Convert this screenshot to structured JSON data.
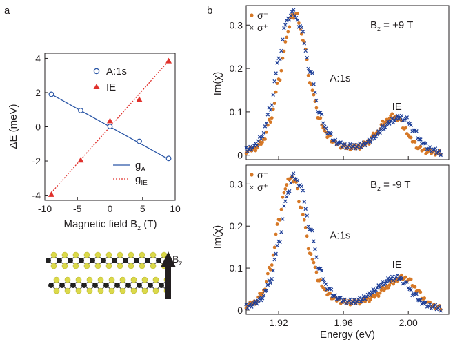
{
  "panel_labels": {
    "a": "a",
    "b": "b"
  },
  "chart_data": [
    {
      "type": "scatter",
      "panel": "a",
      "xlabel": "Magnetic field B",
      "xlabel_sub": "z",
      "xlabel_unit": " (T)",
      "ylabel": "ΔE (meV)",
      "xlim": [
        -10,
        10
      ],
      "ylim": [
        -4.3,
        4.3
      ],
      "xticks": [
        -10,
        -5,
        0,
        5,
        10
      ],
      "yticks": [
        -4,
        -2,
        0,
        2,
        4
      ],
      "series": [
        {
          "name": "A:1s",
          "marker": "open-circle",
          "color": "#2a56a6",
          "x": [
            -9,
            -4.5,
            0,
            4.5,
            9
          ],
          "y": [
            1.9,
            0.95,
            0.02,
            -0.85,
            -1.85
          ]
        },
        {
          "name": "IE",
          "marker": "filled-triangle",
          "color": "#e0312c",
          "x": [
            -9,
            -4.5,
            0,
            4.5,
            9
          ],
          "y": [
            -3.95,
            -1.95,
            0.35,
            1.6,
            3.85
          ]
        }
      ],
      "fits": [
        {
          "name": "g",
          "sub": "A",
          "style": "solid",
          "color": "#2a56a6",
          "x": [
            -9,
            9
          ],
          "y": [
            1.9,
            -1.9
          ]
        },
        {
          "name": "g",
          "sub": "IE",
          "style": "dotted",
          "color": "#e0312c",
          "x": [
            -9,
            9
          ],
          "y": [
            -3.85,
            3.85
          ]
        }
      ],
      "legend_position": "top-right",
      "inset_label": "B",
      "inset_label_sub": "z"
    },
    {
      "type": "scatter",
      "panel": "b-top",
      "ylabel": "Im(χ)",
      "xlim": [
        1.9,
        2.025
      ],
      "ylim": [
        -0.01,
        0.345
      ],
      "yticks": [
        0,
        0.1,
        0.2,
        0.3
      ],
      "ytick_labels": [
        "0",
        "0.1",
        "0.2",
        "0.3"
      ],
      "field_label": "B",
      "field_label_sub": "z",
      "field_label_value": "= +9 T",
      "annotations": [
        "A:1s",
        "IE"
      ],
      "series": [
        {
          "name": "σ⁻",
          "marker": "dot",
          "color": "#d67826",
          "x": [
            1.9,
            1.905,
            1.91,
            1.915,
            1.92,
            1.925,
            1.928,
            1.931,
            1.935,
            1.94,
            1.945,
            1.95,
            1.955,
            1.96,
            1.965,
            1.97,
            1.975,
            1.98,
            1.985,
            1.99,
            1.994,
            1.998,
            2.002,
            2.007,
            2.012,
            2.02
          ],
          "y": [
            0.01,
            0.015,
            0.03,
            0.08,
            0.17,
            0.27,
            0.32,
            0.325,
            0.27,
            0.16,
            0.085,
            0.045,
            0.028,
            0.02,
            0.018,
            0.02,
            0.03,
            0.05,
            0.075,
            0.09,
            0.085,
            0.06,
            0.035,
            0.015,
            0.008,
            0.005
          ]
        },
        {
          "name": "σ⁺",
          "marker": "x",
          "color": "#1e3f98",
          "x": [
            1.9,
            1.905,
            1.91,
            1.915,
            1.92,
            1.925,
            1.929,
            1.933,
            1.94,
            1.945,
            1.95,
            1.955,
            1.96,
            1.965,
            1.97,
            1.975,
            1.98,
            1.985,
            1.99,
            1.995,
            1.999,
            2.003,
            2.008,
            2.013,
            2.02
          ],
          "y": [
            0.012,
            0.02,
            0.045,
            0.11,
            0.22,
            0.31,
            0.33,
            0.3,
            0.19,
            0.1,
            0.055,
            0.032,
            0.022,
            0.02,
            0.022,
            0.03,
            0.045,
            0.065,
            0.08,
            0.088,
            0.082,
            0.06,
            0.032,
            0.015,
            0.006
          ]
        }
      ]
    },
    {
      "type": "scatter",
      "panel": "b-bottom",
      "ylabel": "Im(χ)",
      "xlabel": "Energy (eV)",
      "xlim": [
        1.9,
        2.025
      ],
      "ylim": [
        -0.01,
        0.345
      ],
      "yticks": [
        0,
        0.1,
        0.2,
        0.3
      ],
      "ytick_labels": [
        "0",
        "0.1",
        "0.2",
        "0.3"
      ],
      "xticks": [
        1.92,
        1.96,
        2.0
      ],
      "xtick_labels": [
        "1.92",
        "1.96",
        "2.00"
      ],
      "field_label": "B",
      "field_label_sub": "z",
      "field_label_value": "= -9 T",
      "annotations": [
        "A:1s",
        "IE"
      ],
      "series": [
        {
          "name": "σ⁻",
          "marker": "dot",
          "color": "#d67826",
          "x": [
            1.9,
            1.905,
            1.91,
            1.915,
            1.92,
            1.924,
            1.927,
            1.93,
            1.934,
            1.94,
            1.945,
            1.95,
            1.955,
            1.96,
            1.965,
            1.97,
            1.975,
            1.98,
            1.985,
            1.99,
            1.995,
            2.0,
            2.005,
            2.01,
            2.015,
            2.02
          ],
          "y": [
            0.01,
            0.018,
            0.04,
            0.1,
            0.21,
            0.29,
            0.315,
            0.31,
            0.24,
            0.13,
            0.07,
            0.04,
            0.026,
            0.02,
            0.018,
            0.02,
            0.025,
            0.035,
            0.05,
            0.065,
            0.078,
            0.074,
            0.05,
            0.025,
            0.01,
            0.005
          ]
        },
        {
          "name": "σ⁺",
          "marker": "x",
          "color": "#1e3f98",
          "x": [
            1.9,
            1.905,
            1.91,
            1.915,
            1.92,
            1.925,
            1.929,
            1.933,
            1.94,
            1.945,
            1.95,
            1.955,
            1.96,
            1.965,
            1.97,
            1.975,
            1.98,
            1.985,
            1.99,
            1.994,
            1.998,
            2.003,
            2.008,
            2.013,
            2.02
          ],
          "y": [
            0.008,
            0.015,
            0.03,
            0.07,
            0.16,
            0.27,
            0.32,
            0.3,
            0.19,
            0.1,
            0.055,
            0.032,
            0.022,
            0.02,
            0.024,
            0.035,
            0.05,
            0.065,
            0.076,
            0.078,
            0.065,
            0.04,
            0.02,
            0.01,
            0.004
          ]
        }
      ]
    }
  ]
}
